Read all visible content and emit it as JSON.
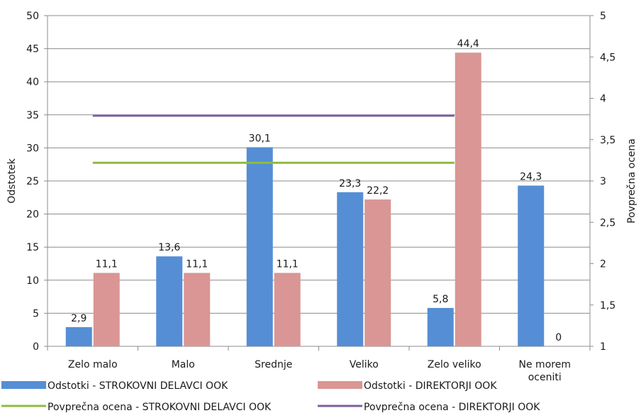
{
  "chart_data": {
    "type": "bar",
    "categories": [
      [
        "Zelo malo"
      ],
      [
        "Malo"
      ],
      [
        "Srednje"
      ],
      [
        "Veliko"
      ],
      [
        "Zelo veliko"
      ],
      [
        "Ne morem",
        "oceniti"
      ]
    ],
    "series": [
      {
        "name": "Odstotki  - STROKOVNI DELAVCI OOK",
        "type": "bar",
        "axis": "left",
        "color": "#558ed5",
        "values": [
          2.9,
          13.6,
          30.1,
          23.3,
          5.8,
          24.3
        ],
        "labels": [
          "2,9",
          "13,6",
          "30,1",
          "23,3",
          "5,8",
          "24,3"
        ]
      },
      {
        "name": "Odstotki  - DIREKTORJI OOK",
        "type": "bar",
        "axis": "left",
        "color": "#d99694",
        "values": [
          11.1,
          11.1,
          11.1,
          22.2,
          44.4,
          0
        ],
        "labels": [
          "11,1",
          "11,1",
          "11,1",
          "22,2",
          "44,4",
          "0"
        ]
      },
      {
        "name": "Povprečna  ocena  - STROKOVNI DELAVCI OOK",
        "type": "line",
        "axis": "right",
        "color": "#8fbc3e",
        "values": [
          3.22,
          3.22,
          3.22,
          3.22,
          3.22,
          null
        ]
      },
      {
        "name": "Povprečna  ocena  - DIREKTORJI OOK",
        "type": "line",
        "axis": "right",
        "color": "#7d5fa0",
        "values": [
          3.79,
          3.79,
          3.79,
          3.79,
          3.79,
          null
        ]
      }
    ],
    "ylabel": "Odstotek",
    "y2label": "Povprečna  ocena",
    "ylim": [
      0,
      50
    ],
    "y2lim": [
      1,
      5
    ],
    "yticks": [
      "0",
      "5",
      "10",
      "15",
      "20",
      "25",
      "30",
      "35",
      "40",
      "45",
      "50"
    ],
    "y2ticks": [
      "1",
      "1,5",
      "2",
      "2,5",
      "3",
      "3,5",
      "4",
      "4,5",
      "5"
    ],
    "grid": true,
    "legend_position": "bottom"
  }
}
